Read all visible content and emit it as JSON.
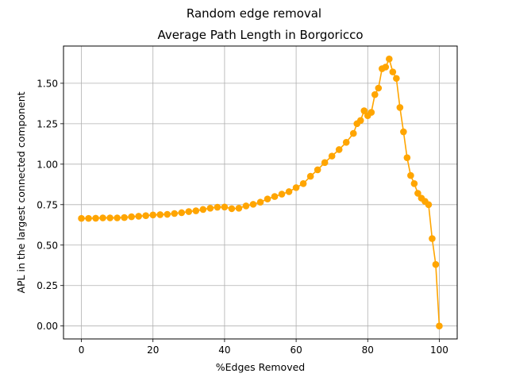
{
  "figure": {
    "suptitle": "Random edge removal"
  },
  "chart_data": {
    "type": "line",
    "title": "Average Path Length in Borgoricco",
    "xlabel": "%Edges Removed",
    "ylabel": "APL in the largest connected component",
    "xlim": [
      -5,
      105
    ],
    "ylim": [
      -0.08,
      1.73
    ],
    "xticks": [
      0,
      20,
      40,
      60,
      80,
      100
    ],
    "xtick_labels": [
      "0",
      "20",
      "40",
      "60",
      "80",
      "100"
    ],
    "yticks": [
      0.0,
      0.25,
      0.5,
      0.75,
      1.0,
      1.25,
      1.5
    ],
    "ytick_labels": [
      "0.00",
      "0.25",
      "0.50",
      "0.75",
      "1.00",
      "1.25",
      "1.50"
    ],
    "grid": true,
    "marker": "circle",
    "series": [
      {
        "color": "#FFA500",
        "x": [
          0,
          2,
          4,
          6,
          8,
          10,
          12,
          14,
          16,
          18,
          20,
          22,
          24,
          26,
          28,
          30,
          32,
          34,
          36,
          38,
          40,
          42,
          44,
          46,
          48,
          50,
          52,
          54,
          56,
          58,
          60,
          62,
          64,
          66,
          68,
          70,
          72,
          74,
          76,
          77,
          78,
          79,
          80,
          81,
          82,
          83,
          84,
          85,
          86,
          87,
          88,
          89,
          90,
          91,
          92,
          93,
          94,
          95,
          96,
          97,
          98,
          99,
          100
        ],
        "y": [
          0.665,
          0.665,
          0.666,
          0.668,
          0.668,
          0.668,
          0.67,
          0.675,
          0.678,
          0.682,
          0.686,
          0.688,
          0.69,
          0.695,
          0.7,
          0.707,
          0.712,
          0.72,
          0.728,
          0.734,
          0.735,
          0.725,
          0.728,
          0.742,
          0.752,
          0.765,
          0.785,
          0.8,
          0.815,
          0.83,
          0.855,
          0.88,
          0.925,
          0.965,
          1.01,
          1.05,
          1.09,
          1.135,
          1.19,
          1.25,
          1.27,
          1.33,
          1.3,
          1.32,
          1.43,
          1.47,
          1.59,
          1.6,
          1.65,
          1.57,
          1.53,
          1.35,
          1.2,
          1.04,
          0.93,
          0.88,
          0.82,
          0.79,
          0.77,
          0.75,
          0.54,
          0.38,
          0.0
        ]
      }
    ]
  }
}
